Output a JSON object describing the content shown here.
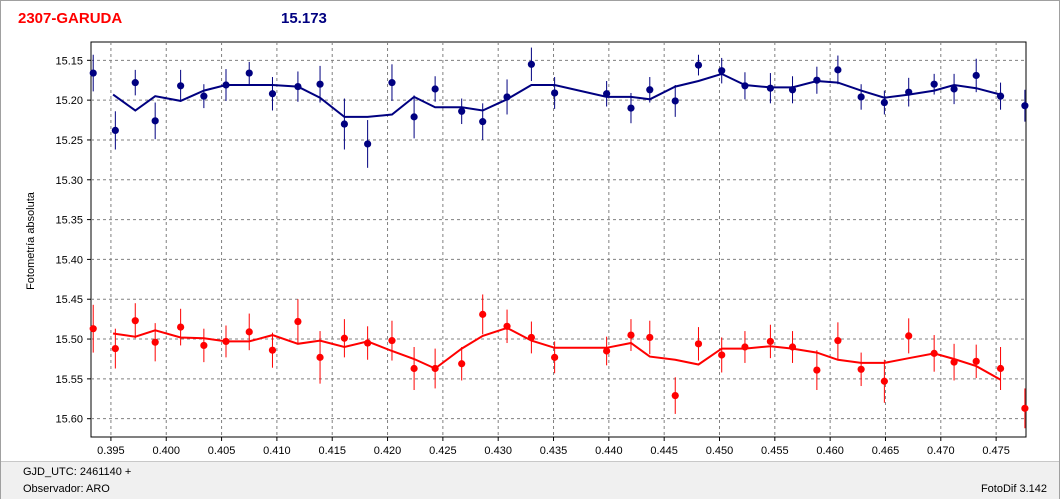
{
  "header": {
    "star_name": "2307-GARUDA",
    "reference_mag": "15.173"
  },
  "status": {
    "gjd_label": "GJD_UTC: 2461140 +",
    "observer_label": "Observador: ARO",
    "version": "FotoDif 3.142"
  },
  "colors": {
    "blue_series": "#000080",
    "red_series": "#ff0000",
    "grid": "#808080"
  },
  "chart_data": {
    "type": "scatter",
    "ylabel": "Fotometría absoluta",
    "xlim": [
      0.3932,
      0.4777
    ],
    "ylim": [
      15.127,
      15.623
    ],
    "y_reversed": true,
    "grid": true,
    "x_ticks": [
      0.395,
      0.4,
      0.405,
      0.41,
      0.415,
      0.42,
      0.425,
      0.43,
      0.435,
      0.44,
      0.445,
      0.45,
      0.455,
      0.46,
      0.465,
      0.47,
      0.475
    ],
    "x_tick_labels": [
      "0.395",
      "0.400",
      "0.405",
      "0.410",
      "0.415",
      "0.420",
      "0.425",
      "0.430",
      "0.435",
      "0.440",
      "0.445",
      "0.450",
      "0.455",
      "0.460",
      "0.465",
      "0.470",
      "0.475"
    ],
    "y_ticks": [
      15.15,
      15.2,
      15.25,
      15.3,
      15.35,
      15.4,
      15.45,
      15.5,
      15.55,
      15.6
    ],
    "y_tick_labels": [
      "15.15",
      "15.20",
      "15.25",
      "15.30",
      "15.35",
      "15.40",
      "15.45",
      "15.50",
      "15.55",
      "15.60"
    ],
    "series": [
      {
        "color": "#000080",
        "points": [
          [
            0.3934,
            15.166,
            0.023
          ],
          [
            0.3954,
            15.238,
            0.024
          ],
          [
            0.3972,
            15.178,
            0.016
          ],
          [
            0.399,
            15.226,
            0.023
          ],
          [
            0.4013,
            15.182,
            0.02
          ],
          [
            0.4034,
            15.195,
            0.015
          ],
          [
            0.4054,
            15.181,
            0.02
          ],
          [
            0.4075,
            15.166,
            0.014
          ],
          [
            0.4096,
            15.192,
            0.021
          ],
          [
            0.4119,
            15.183,
            0.019
          ],
          [
            0.4139,
            15.18,
            0.023
          ],
          [
            0.4161,
            15.23,
            0.032
          ],
          [
            0.4182,
            15.255,
            0.03
          ],
          [
            0.4204,
            15.178,
            0.023
          ],
          [
            0.4224,
            15.221,
            0.027
          ],
          [
            0.4243,
            15.186,
            0.016
          ],
          [
            0.4267,
            15.214,
            0.016
          ],
          [
            0.4286,
            15.227,
            0.023
          ],
          [
            0.4308,
            15.196,
            0.022
          ],
          [
            0.433,
            15.155,
            0.021
          ],
          [
            0.4351,
            15.191,
            0.02
          ],
          [
            0.4398,
            15.192,
            0.016
          ],
          [
            0.442,
            15.21,
            0.019
          ],
          [
            0.4437,
            15.187,
            0.016
          ],
          [
            0.446,
            15.201,
            0.02
          ],
          [
            0.4481,
            15.156,
            0.013
          ],
          [
            0.4502,
            15.163,
            0.016
          ],
          [
            0.4523,
            15.182,
            0.017
          ],
          [
            0.4546,
            15.185,
            0.019
          ],
          [
            0.4566,
            15.187,
            0.017
          ],
          [
            0.4588,
            15.175,
            0.017
          ],
          [
            0.4607,
            15.162,
            0.018
          ],
          [
            0.4628,
            15.196,
            0.016
          ],
          [
            0.4649,
            15.203,
            0.015
          ],
          [
            0.4671,
            15.19,
            0.018
          ],
          [
            0.4694,
            15.18,
            0.013
          ],
          [
            0.4712,
            15.186,
            0.019
          ],
          [
            0.4732,
            15.169,
            0.021
          ],
          [
            0.4754,
            15.195,
            0.017
          ],
          [
            0.4776,
            15.207,
            0.02
          ]
        ],
        "trend": [
          [
            0.3952,
            15.193
          ],
          [
            0.3972,
            15.213
          ],
          [
            0.399,
            15.195
          ],
          [
            0.4013,
            15.201
          ],
          [
            0.4034,
            15.188
          ],
          [
            0.4054,
            15.181
          ],
          [
            0.4075,
            15.181
          ],
          [
            0.4096,
            15.181
          ],
          [
            0.4119,
            15.183
          ],
          [
            0.4139,
            15.197
          ],
          [
            0.4161,
            15.221
          ],
          [
            0.4182,
            15.221
          ],
          [
            0.4204,
            15.218
          ],
          [
            0.4224,
            15.196
          ],
          [
            0.4243,
            15.209
          ],
          [
            0.4267,
            15.209
          ],
          [
            0.4286,
            15.213
          ],
          [
            0.4308,
            15.199
          ],
          [
            0.433,
            15.181
          ],
          [
            0.4351,
            15.181
          ],
          [
            0.4398,
            15.196
          ],
          [
            0.442,
            15.196
          ],
          [
            0.4437,
            15.199
          ],
          [
            0.446,
            15.183
          ],
          [
            0.4481,
            15.176
          ],
          [
            0.4502,
            15.167
          ],
          [
            0.4523,
            15.181
          ],
          [
            0.4546,
            15.184
          ],
          [
            0.4566,
            15.184
          ],
          [
            0.4588,
            15.176
          ],
          [
            0.4607,
            15.178
          ],
          [
            0.4628,
            15.188
          ],
          [
            0.4649,
            15.197
          ],
          [
            0.4671,
            15.193
          ],
          [
            0.4694,
            15.188
          ],
          [
            0.4712,
            15.181
          ],
          [
            0.4732,
            15.185
          ],
          [
            0.4754,
            15.193
          ]
        ]
      },
      {
        "color": "#ff0000",
        "points": [
          [
            0.3934,
            15.487,
            0.03
          ],
          [
            0.3954,
            15.512,
            0.025
          ],
          [
            0.3972,
            15.477,
            0.022
          ],
          [
            0.399,
            15.504,
            0.024
          ],
          [
            0.4013,
            15.485,
            0.023
          ],
          [
            0.4034,
            15.508,
            0.021
          ],
          [
            0.4054,
            15.503,
            0.02
          ],
          [
            0.4075,
            15.491,
            0.023
          ],
          [
            0.4096,
            15.514,
            0.022
          ],
          [
            0.4119,
            15.478,
            0.028
          ],
          [
            0.4139,
            15.523,
            0.033
          ],
          [
            0.4161,
            15.499,
            0.024
          ],
          [
            0.4182,
            15.505,
            0.021
          ],
          [
            0.4204,
            15.502,
            0.025
          ],
          [
            0.4224,
            15.537,
            0.027
          ],
          [
            0.4243,
            15.537,
            0.025
          ],
          [
            0.4267,
            15.531,
            0.021
          ],
          [
            0.4286,
            15.469,
            0.025
          ],
          [
            0.4308,
            15.484,
            0.021
          ],
          [
            0.433,
            15.498,
            0.02
          ],
          [
            0.4351,
            15.523,
            0.02
          ],
          [
            0.4398,
            15.515,
            0.018
          ],
          [
            0.442,
            15.495,
            0.02
          ],
          [
            0.4437,
            15.498,
            0.021
          ],
          [
            0.446,
            15.571,
            0.023
          ],
          [
            0.4481,
            15.506,
            0.021
          ],
          [
            0.4502,
            15.52,
            0.022
          ],
          [
            0.4523,
            15.51,
            0.02
          ],
          [
            0.4546,
            15.503,
            0.021
          ],
          [
            0.4566,
            15.51,
            0.02
          ],
          [
            0.4588,
            15.539,
            0.025
          ],
          [
            0.4607,
            15.502,
            0.023
          ],
          [
            0.4628,
            15.538,
            0.021
          ],
          [
            0.4649,
            15.553,
            0.027
          ],
          [
            0.4671,
            15.496,
            0.022
          ],
          [
            0.4694,
            15.518,
            0.023
          ],
          [
            0.4712,
            15.529,
            0.023
          ],
          [
            0.4732,
            15.528,
            0.021
          ],
          [
            0.4754,
            15.537,
            0.027
          ],
          [
            0.4776,
            15.587,
            0.025
          ]
        ],
        "trend": [
          [
            0.3952,
            15.493
          ],
          [
            0.3972,
            15.497
          ],
          [
            0.399,
            15.489
          ],
          [
            0.4013,
            15.498
          ],
          [
            0.4034,
            15.499
          ],
          [
            0.4054,
            15.503
          ],
          [
            0.4075,
            15.503
          ],
          [
            0.4096,
            15.495
          ],
          [
            0.4119,
            15.506
          ],
          [
            0.4139,
            15.502
          ],
          [
            0.4161,
            15.51
          ],
          [
            0.4182,
            15.503
          ],
          [
            0.4204,
            15.515
          ],
          [
            0.4224,
            15.525
          ],
          [
            0.4243,
            15.537
          ],
          [
            0.4267,
            15.512
          ],
          [
            0.4286,
            15.496
          ],
          [
            0.4308,
            15.486
          ],
          [
            0.433,
            15.502
          ],
          [
            0.4351,
            15.511
          ],
          [
            0.4398,
            15.511
          ],
          [
            0.442,
            15.505
          ],
          [
            0.4437,
            15.522
          ],
          [
            0.446,
            15.526
          ],
          [
            0.4481,
            15.532
          ],
          [
            0.4502,
            15.512
          ],
          [
            0.4523,
            15.512
          ],
          [
            0.4546,
            15.509
          ],
          [
            0.4566,
            15.512
          ],
          [
            0.4588,
            15.517
          ],
          [
            0.4607,
            15.526
          ],
          [
            0.4628,
            15.53
          ],
          [
            0.4649,
            15.53
          ],
          [
            0.4671,
            15.524
          ],
          [
            0.4694,
            15.518
          ],
          [
            0.4712,
            15.525
          ],
          [
            0.4732,
            15.534
          ],
          [
            0.4754,
            15.551
          ]
        ]
      }
    ]
  }
}
